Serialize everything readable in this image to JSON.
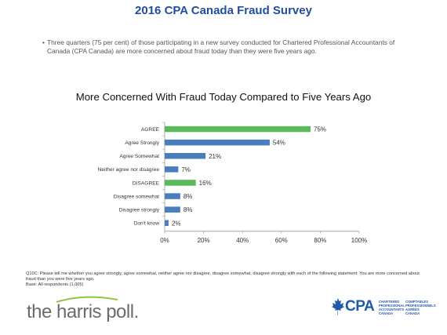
{
  "slide": {
    "title": "2016 CPA Canada Fraud Survey",
    "bullet_marker": "•",
    "bullet_text": "Three quarters (75 per cent) of those participating in a new survey conducted for Chartered Professional Accountants of Canada (CPA Canada) are more concerned about fraud today than they were five years ago."
  },
  "chart_data": {
    "type": "bar",
    "orientation": "horizontal",
    "title": "More Concerned With Fraud Today Compared to Five Years Ago",
    "categories": [
      "AGREE",
      "Agree Strongly",
      "Agree Somewhat",
      "Neither agree nor disagree",
      "DISAGREE",
      "Disagree somewhat",
      "Disagree strongly",
      "Don't know"
    ],
    "values": [
      75,
      54,
      21,
      7,
      16,
      8,
      8,
      2
    ],
    "value_labels": [
      "75%",
      "54%",
      "21%",
      "7%",
      "16%",
      "8%",
      "8%",
      "2%"
    ],
    "bar_colors": [
      "#5cb85c",
      "#4a7ebb",
      "#4a7ebb",
      "#4a7ebb",
      "#5cb85c",
      "#4a7ebb",
      "#4a7ebb",
      "#4a7ebb"
    ],
    "xlim": [
      0,
      100
    ],
    "x_ticks": [
      "0%",
      "20%",
      "40%",
      "60%",
      "80%",
      "100%"
    ],
    "x_tick_values": [
      0,
      20,
      40,
      60,
      80,
      100
    ],
    "grid": false
  },
  "footnote": {
    "question": "Q10C: Please tell me whether you agree strongly, agree somewhat, neither agree nor disagree, disagree somewhat, disagree strongly with each of the following statement: You are more concerned about fraud than you were five years ago.",
    "base": "Base:  All respondents (1,005)"
  },
  "logos": {
    "harris": "the harris poll.",
    "cpa": "CPA",
    "cpa_en": "CHARTERED\nPROFESSIONAL\nACCOUNTANTS\nCANADA",
    "cpa_fr": "COMPTABLES\nPROFESSIONNELS\nAGRÉÉS\nCANADA",
    "colors": {
      "harris_green": "#8cc63f",
      "cpa_blue": "#1f5aa6"
    }
  }
}
